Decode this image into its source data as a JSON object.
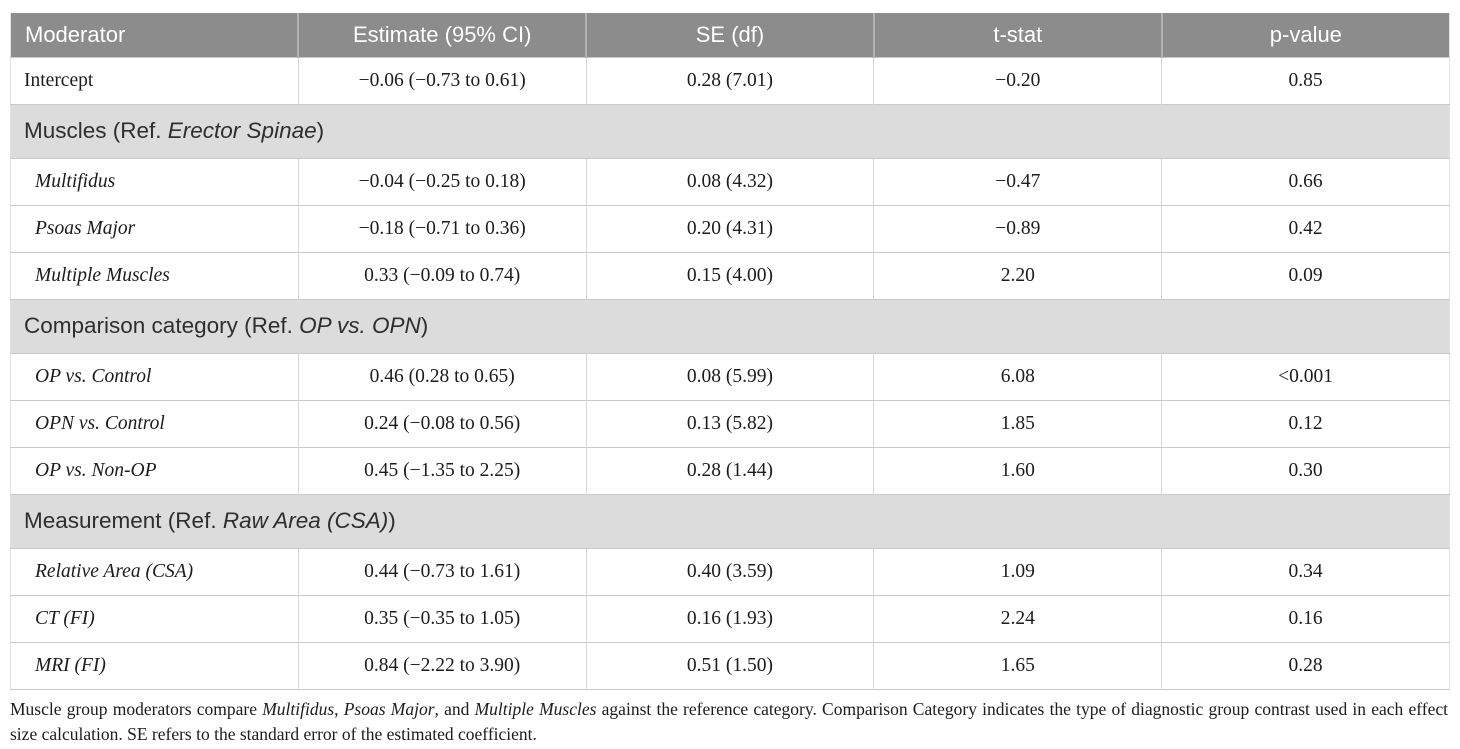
{
  "colors": {
    "header_bg": "#8c8c8c",
    "header_text": "#ffffff",
    "section_bg": "#dcdcdc",
    "body_text": "#1c1c1c"
  },
  "table": {
    "columns": [
      "Moderator",
      "Estimate (95% CI)",
      "SE (df)",
      "t-stat",
      "p-value"
    ],
    "rows": {
      "intercept": {
        "moderator": "Intercept",
        "estimate": "−0.06 (−0.73 to 0.61)",
        "se_df": "0.28 (7.01)",
        "t_stat": "−0.20",
        "p_value": "0.85"
      },
      "muscles_section": {
        "prefix": "Muscles (Ref. ",
        "ref": "Erector Spinae",
        "suffix": ")"
      },
      "multifidus": {
        "moderator": "Multifidus",
        "estimate": "−0.04 (−0.25 to 0.18)",
        "se_df": "0.08 (4.32)",
        "t_stat": "−0.47",
        "p_value": "0.66"
      },
      "psoas_major": {
        "moderator": "Psoas Major",
        "estimate": "−0.18 (−0.71 to 0.36)",
        "se_df": "0.20 (4.31)",
        "t_stat": "−0.89",
        "p_value": "0.42"
      },
      "multiple_muscles": {
        "moderator": "Multiple Muscles",
        "estimate": "0.33 (−0.09 to 0.74)",
        "se_df": "0.15 (4.00)",
        "t_stat": "2.20",
        "p_value": "0.09"
      },
      "comparison_section": {
        "prefix": "Comparison category (Ref. ",
        "ref": "OP vs. OPN",
        "suffix": ")"
      },
      "op_vs_control": {
        "moderator": "OP vs. Control",
        "estimate": "0.46 (0.28 to 0.65)",
        "se_df": "0.08 (5.99)",
        "t_stat": "6.08",
        "p_value": "<0.001"
      },
      "opn_vs_control": {
        "moderator": "OPN vs. Control",
        "estimate": "0.24 (−0.08 to 0.56)",
        "se_df": "0.13 (5.82)",
        "t_stat": "1.85",
        "p_value": "0.12"
      },
      "op_vs_nonop": {
        "moderator": "OP vs. Non-OP",
        "estimate": "0.45 (−1.35 to 2.25)",
        "se_df": "0.28 (1.44)",
        "t_stat": "1.60",
        "p_value": "0.30"
      },
      "measurement_section": {
        "prefix": "Measurement (Ref. ",
        "ref": "Raw Area (CSA)",
        "suffix": ")"
      },
      "relative_area": {
        "moderator": "Relative Area (CSA)",
        "estimate": "0.44 (−0.73 to 1.61)",
        "se_df": "0.40 (3.59)",
        "t_stat": "1.09",
        "p_value": "0.34"
      },
      "ct_fi": {
        "moderator": "CT (FI)",
        "estimate": "0.35 (−0.35 to 1.05)",
        "se_df": "0.16 (1.93)",
        "t_stat": "2.24",
        "p_value": "0.16"
      },
      "mri_fi": {
        "moderator": "MRI (FI)",
        "estimate": "0.84 (−2.22 to 3.90)",
        "se_df": "0.51 (1.50)",
        "t_stat": "1.65",
        "p_value": "0.28"
      }
    }
  },
  "footnote": {
    "segments": {
      "s0": "Muscle group moderators compare ",
      "s1": "Multifidus",
      "s2": ", ",
      "s3": "Psoas Major",
      "s4": ", and ",
      "s5": "Multiple Muscles",
      "s6": " against the reference category. Comparison Category indicates the type of diagnostic group contrast used in each effect size calculation. SE refers to the standard error of the estimated coefficient."
    }
  }
}
